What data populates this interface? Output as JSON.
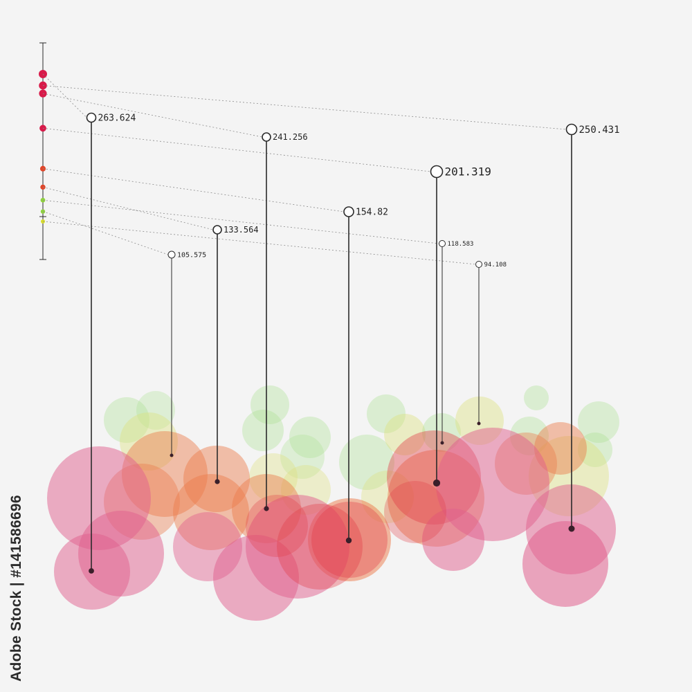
{
  "chart_data": {
    "type": "scatter",
    "title": "",
    "xlabel": "",
    "ylabel": "",
    "grid": false,
    "legend": "none",
    "points": [
      {
        "label": "263.624",
        "value": 263.624,
        "color": "#d81b4a"
      },
      {
        "label": "241.256",
        "value": 241.256,
        "color": "#d81b4a"
      },
      {
        "label": "250.431",
        "value": 250.431,
        "color": "#d81b4a"
      },
      {
        "label": "201.319",
        "value": 201.319,
        "color": "#d81b4a"
      },
      {
        "label": "154.82",
        "value": 154.82,
        "color": "#e0462a"
      },
      {
        "label": "133.564",
        "value": 133.564,
        "color": "#e0462a"
      },
      {
        "label": "118.583",
        "value": 118.583,
        "color": "#8fd13f"
      },
      {
        "label": "105.575",
        "value": 105.575,
        "color": "#8fd13f"
      },
      {
        "label": "94.108",
        "value": 94.108,
        "color": "#d7dc2a"
      }
    ]
  },
  "colors": {
    "pink": "#e0608e",
    "red": "#e23a44",
    "orange": "#ec7a4a",
    "yellow": "#dde07a",
    "green": "#a9e08e",
    "stem": "#2a2a2a",
    "leader": "#8a8a8a"
  },
  "watermark": "Adobe Stock | #141586696"
}
